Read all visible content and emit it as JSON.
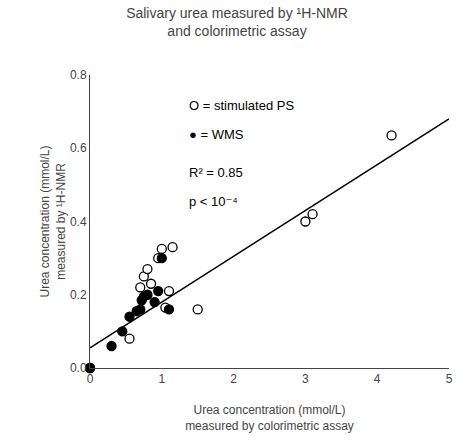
{
  "chart_data": {
    "type": "scatter",
    "title": "Salivary urea measured by ¹H-NMR\nand colorimetric assay",
    "x_label": "Urea concentration (mmol/L)\nmeasured by colorimetric assay",
    "y_label": "Urea concentration (mmol/L)\nmeasured by ¹H-NMR",
    "xlim": [
      0,
      5
    ],
    "ylim": [
      0,
      0.8
    ],
    "xticks": [
      0,
      1,
      2,
      3,
      4,
      5
    ],
    "yticks": [
      {
        "value": 0,
        "label": "0.0"
      },
      0.2,
      0.4,
      0.6,
      0.8
    ],
    "grid": false,
    "series": [
      {
        "type": "line",
        "color": "#000000",
        "line_style": "solid",
        "x": [
          0,
          5
        ],
        "values": [
          0.055,
          0.68
        ]
      },
      {
        "type": "scatter",
        "color": "#000000",
        "marker": "open circle",
        "x": [
          0.0,
          0.55,
          0.7,
          0.75,
          0.8,
          0.85,
          0.95,
          1.0,
          1.05,
          1.1,
          1.15,
          1.5,
          3.0,
          3.1,
          4.2
        ],
        "values": [
          0.0,
          0.08,
          0.22,
          0.25,
          0.27,
          0.23,
          0.3,
          0.325,
          0.165,
          0.21,
          0.33,
          0.16,
          0.4,
          0.42,
          0.635
        ]
      },
      {
        "type": "scatter",
        "color": "#000000",
        "marker": "filled circle",
        "x": [
          0.0,
          0.3,
          0.45,
          0.55,
          0.65,
          0.7,
          0.72,
          0.75,
          0.8,
          0.9,
          0.95,
          1.0,
          1.1
        ],
        "values": [
          0.0,
          0.06,
          0.1,
          0.14,
          0.155,
          0.16,
          0.185,
          0.195,
          0.2,
          0.18,
          0.21,
          0.3,
          0.16
        ]
      }
    ],
    "annotations": [
      "O = stimulated PS",
      "● = WMS",
      "R² = 0.85",
      "p < 10⁻⁴"
    ]
  }
}
